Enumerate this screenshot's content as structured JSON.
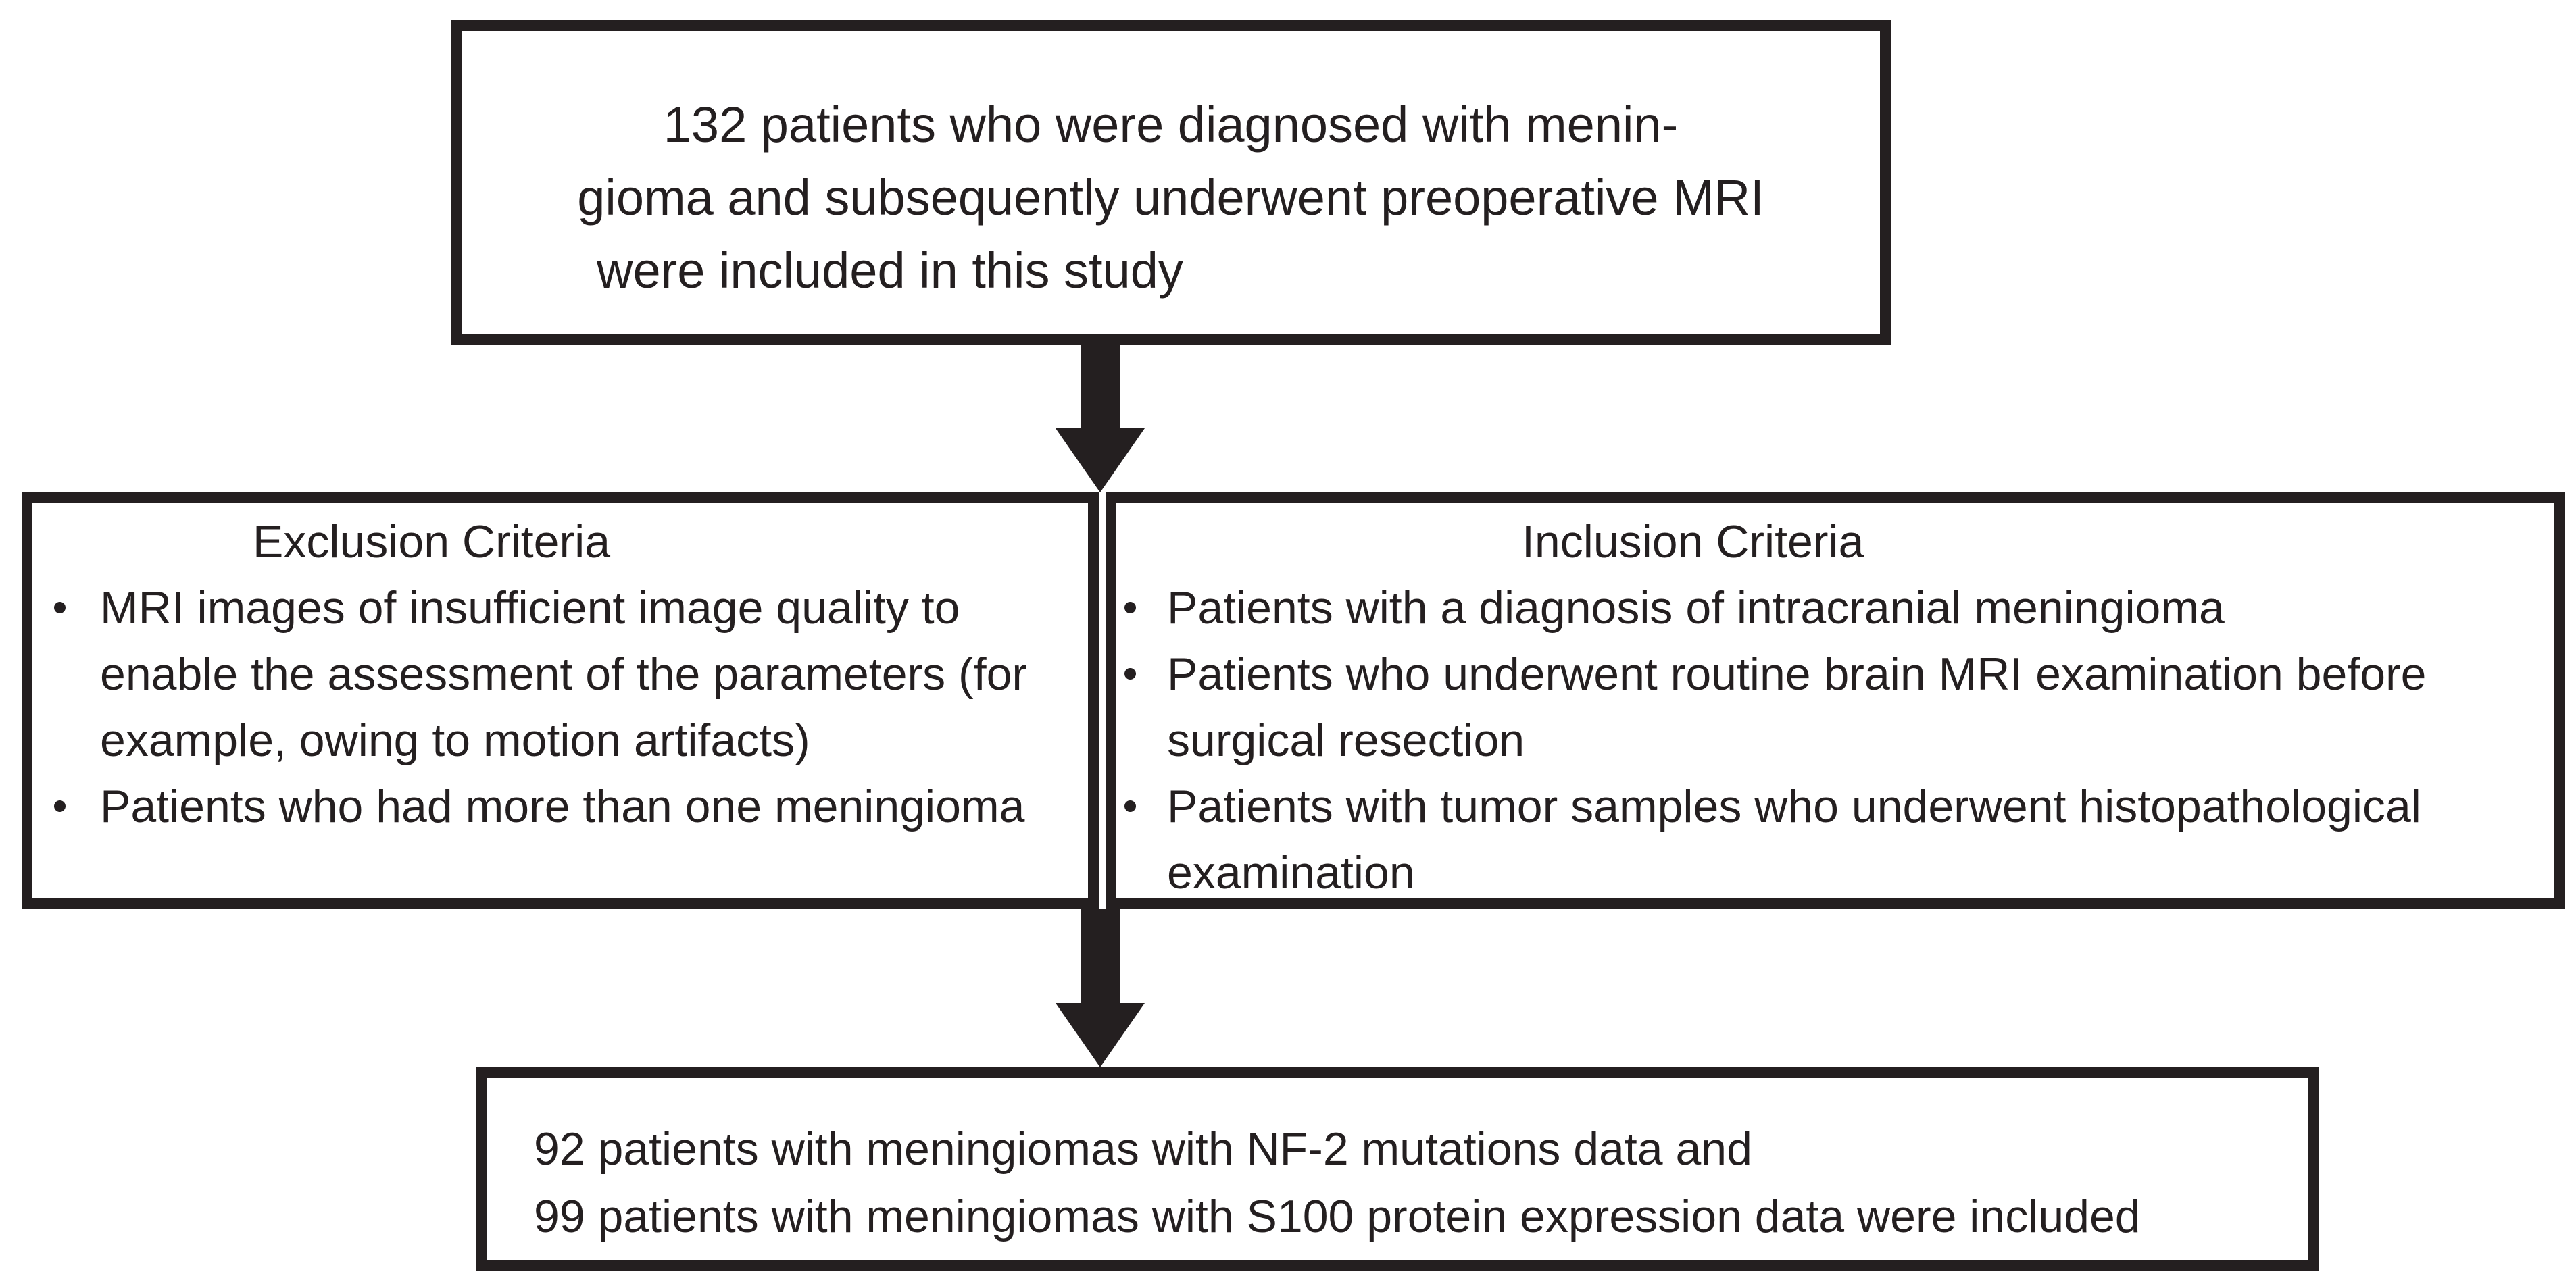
{
  "colors": {
    "ink": "#241f20",
    "background": "#ffffff"
  },
  "flowchart": {
    "top_box": {
      "lines": [
        "132 patients who were diagnosed with menin-",
        "gioma and subsequently underwent preoperative MRI",
        "were included in this study"
      ]
    },
    "exclusion_box": {
      "title": "Exclusion Criteria",
      "bullets": [
        {
          "lines": [
            "MRI images of insufficient image quality to",
            "enable the assessment of the parameters (for",
            "example, owing to motion artifacts)"
          ]
        },
        {
          "lines": [
            "Patients who had more than one meningioma"
          ]
        }
      ]
    },
    "inclusion_box": {
      "title": "Inclusion Criteria",
      "bullets": [
        {
          "lines": [
            "Patients with a diagnosis of intracranial meningioma"
          ]
        },
        {
          "lines": [
            "Patients who underwent routine brain MRI examination before",
            "surgical resection"
          ]
        },
        {
          "lines": [
            "Patients with tumor samples who underwent histopathological",
            "examination"
          ]
        }
      ]
    },
    "result_box": {
      "lines": [
        "92 patients with meningiomas with NF-2 mutations data and",
        "99 patients with meningiomas with S100 protein expression data were included"
      ]
    }
  }
}
